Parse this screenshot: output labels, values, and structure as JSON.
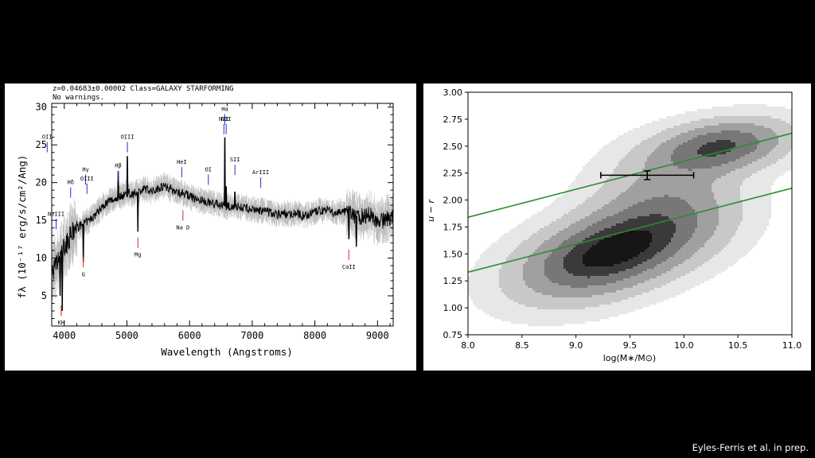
{
  "credit": "Eyles-Ferris et al. in prep.",
  "chart_data": [
    {
      "type": "line",
      "header_line1": "z=0.04683±0.00002 Class=GALAXY STARFORMING",
      "header_line2": "No warnings.",
      "xlabel": "Wavelength (Angstroms)",
      "ylabel": "fλ (10⁻¹⁷ erg/s/cm²/Ang)",
      "xlim": [
        3800,
        9250
      ],
      "ylim": [
        1,
        30.5
      ],
      "xticks": [
        4000,
        5000,
        6000,
        7000,
        8000,
        9000
      ],
      "yticks": [
        5,
        10,
        15,
        20,
        25,
        30
      ],
      "continuum": {
        "x": [
          3800,
          3900,
          3950,
          4000,
          4050,
          4100,
          4150,
          4200,
          4300,
          4400,
          4500,
          4600,
          4700,
          4800,
          4900,
          5000,
          5100,
          5200,
          5300,
          5400,
          5500,
          5600,
          5700,
          5800,
          5900,
          6000,
          6100,
          6200,
          6300,
          6400,
          6500,
          6600,
          6700,
          6800,
          6900,
          7000,
          7100,
          7200,
          7300,
          7400,
          7500,
          7600,
          7700,
          7800,
          7900,
          8000,
          8100,
          8200,
          8300,
          8400,
          8500,
          8600,
          8700,
          8800,
          8900,
          9000,
          9100,
          9200
        ],
        "y": [
          8,
          9.5,
          10.5,
          11.5,
          12,
          13,
          13.5,
          14,
          14.5,
          15,
          15.8,
          16.8,
          17.5,
          17.8,
          18.2,
          18.6,
          18.5,
          18.8,
          19.2,
          18.8,
          19.3,
          19.6,
          19.2,
          18.7,
          18.6,
          18.2,
          17.8,
          17.6,
          17.4,
          17.2,
          17.0,
          16.8,
          16.9,
          16.8,
          16.6,
          16.4,
          16.3,
          16.2,
          16.0,
          15.8,
          15.9,
          15.8,
          16.0,
          15.6,
          15.8,
          16.1,
          16.3,
          16.4,
          15.9,
          16.2,
          16.0,
          15.8,
          15.4,
          15.6,
          15.8,
          14.8,
          15.0,
          15.4
        ]
      },
      "emission_peaks": [
        {
          "x": 3727,
          "y": 23.8
        },
        {
          "x": 4861,
          "y": 21.5
        },
        {
          "x": 5007,
          "y": 23.5
        },
        {
          "x": 6563,
          "y": 26.0
        },
        {
          "x": 6584,
          "y": 19.5
        },
        {
          "x": 6724,
          "y": 18.8
        }
      ],
      "absorption_dips": [
        {
          "x": 3934,
          "y": 5.0
        },
        {
          "x": 3968,
          "y": 3.0
        },
        {
          "x": 4304,
          "y": 9.5
        },
        {
          "x": 5175,
          "y": 13.5
        },
        {
          "x": 8542,
          "y": 12.5
        },
        {
          "x": 8662,
          "y": 11.5
        }
      ],
      "line_labels": [
        {
          "label": "OII",
          "x": 3727,
          "y": 25.8,
          "color": "blue"
        },
        {
          "label": "NeIII",
          "x": 3870,
          "y": 15.6,
          "color": "blue"
        },
        {
          "label": "Hδ",
          "x": 4102,
          "y": 19.8,
          "color": "blue"
        },
        {
          "label": "Hγ",
          "x": 4341,
          "y": 21.5,
          "color": "blue"
        },
        {
          "label": "OIII",
          "x": 4363,
          "y": 20.3,
          "color": "blue"
        },
        {
          "label": "Hβ",
          "x": 4861,
          "y": 22.0,
          "color": "blue"
        },
        {
          "label": "OIII",
          "x": 5007,
          "y": 25.8,
          "color": "blue"
        },
        {
          "label": "HeI",
          "x": 5876,
          "y": 22.5,
          "color": "blue"
        },
        {
          "label": "OI",
          "x": 6300,
          "y": 21.5,
          "color": "blue"
        },
        {
          "label": "NII",
          "x": 6548,
          "y": 28.2,
          "color": "blue"
        },
        {
          "label": "Hα",
          "x": 6563,
          "y": 29.5,
          "color": "blue"
        },
        {
          "label": "NII",
          "x": 6584,
          "y": 28.2,
          "color": "blue"
        },
        {
          "label": "SII",
          "x": 6724,
          "y": 22.8,
          "color": "blue"
        },
        {
          "label": "ArIII",
          "x": 7136,
          "y": 21.1,
          "color": "blue"
        },
        {
          "label": "KH",
          "x": 3951,
          "y": 1.2,
          "color": "red"
        },
        {
          "label": "G",
          "x": 4304,
          "y": 7.6,
          "color": "red"
        },
        {
          "label": "Mg",
          "x": 5175,
          "y": 10.2,
          "color": "red"
        },
        {
          "label": "Na D",
          "x": 5894,
          "y": 13.8,
          "color": "red"
        },
        {
          "label": "CaII",
          "x": 8542,
          "y": 8.6,
          "color": "red"
        }
      ]
    },
    {
      "type": "contour",
      "xlabel": "log(M∗/M⊙)",
      "ylabel": "u − r",
      "xlim": [
        8.0,
        11.0
      ],
      "ylim": [
        0.75,
        3.0
      ],
      "xticks": [
        "8.0",
        "8.5",
        "9.0",
        "9.5",
        "10.0",
        "10.5",
        "11.0"
      ],
      "yticks": [
        "0.75",
        "1.00",
        "1.25",
        "1.50",
        "1.75",
        "2.00",
        "2.25",
        "2.50",
        "2.75",
        "3.00"
      ],
      "point": {
        "x": 9.66,
        "y": 2.23,
        "xerr": 0.43,
        "yerr": 0.04
      },
      "lines": [
        {
          "x": [
            8.0,
            11.0
          ],
          "y": [
            1.84,
            2.62
          ],
          "color": "#2e8b2e"
        },
        {
          "x": [
            8.0,
            11.0
          ],
          "y": [
            1.33,
            2.11
          ],
          "color": "#2e8b2e"
        }
      ],
      "contour_levels": [
        "#e7e7e7",
        "#c8c8c8",
        "#a0a0a0",
        "#777777",
        "#3a3a3a",
        "#161616"
      ]
    }
  ]
}
